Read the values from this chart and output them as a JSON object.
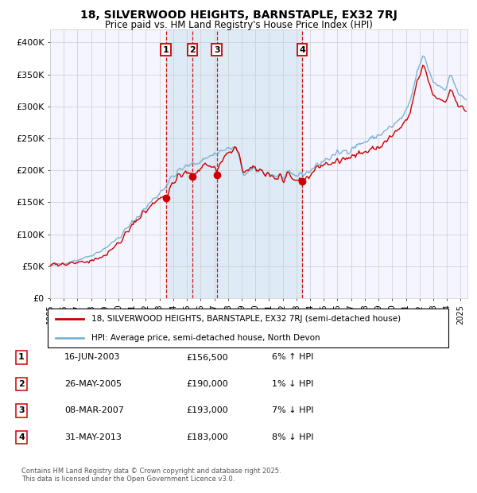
{
  "title": "18, SILVERWOOD HEIGHTS, BARNSTAPLE, EX32 7RJ",
  "subtitle": "Price paid vs. HM Land Registry's House Price Index (HPI)",
  "legend_line1": "18, SILVERWOOD HEIGHTS, BARNSTAPLE, EX32 7RJ (semi-detached house)",
  "legend_line2": "HPI: Average price, semi-detached house, North Devon",
  "footer": "Contains HM Land Registry data © Crown copyright and database right 2025.\nThis data is licensed under the Open Government Licence v3.0.",
  "transactions": [
    {
      "num": 1,
      "date": "16-JUN-2003",
      "price": 156500,
      "pct": "6%",
      "dir": "↑",
      "year": 2003.46
    },
    {
      "num": 2,
      "date": "26-MAY-2005",
      "price": 190000,
      "pct": "1%",
      "dir": "↓",
      "year": 2005.4
    },
    {
      "num": 3,
      "date": "08-MAR-2007",
      "price": 193000,
      "pct": "7%",
      "dir": "↓",
      "year": 2007.18
    },
    {
      "num": 4,
      "date": "31-MAY-2013",
      "price": 183000,
      "pct": "8%",
      "dir": "↓",
      "year": 2013.42
    }
  ],
  "hpi_color": "#7ab3d4",
  "price_color": "#cc0000",
  "vline_color": "#cc0000",
  "shade_color": "#d0e4f0",
  "ylim": [
    0,
    420000
  ],
  "yticks": [
    0,
    50000,
    100000,
    150000,
    200000,
    250000,
    300000,
    350000,
    400000
  ],
  "ytick_labels": [
    "£0",
    "£50K",
    "£100K",
    "£150K",
    "£200K",
    "£250K",
    "£300K",
    "£350K",
    "£400K"
  ],
  "xstart": 1995,
  "xend": 2025.5,
  "grid_color": "#cccccc",
  "bg_color": "#f5f5ff"
}
